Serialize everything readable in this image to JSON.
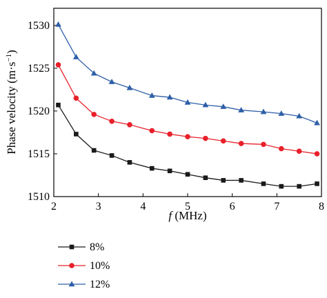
{
  "chart_data": {
    "type": "line",
    "xlabel_italic": "f",
    "xlabel_unit": " (MHz)",
    "ylabel_main": "Phase velocity (m·s",
    "ylabel_sup": "−1",
    "ylabel_close": ")",
    "xlim": [
      2,
      8
    ],
    "ylim": [
      1510,
      1532
    ],
    "x_ticks": [
      2,
      3,
      4,
      5,
      6,
      7,
      8
    ],
    "y_ticks": [
      1510,
      1515,
      1520,
      1525,
      1530
    ],
    "x": [
      2.1,
      2.5,
      2.9,
      3.3,
      3.7,
      4.2,
      4.6,
      5.0,
      5.4,
      5.8,
      6.2,
      6.7,
      7.1,
      7.5,
      7.9
    ],
    "series": [
      {
        "name": "8%",
        "color": "#1a1a1a",
        "marker": "square",
        "values": [
          1520.7,
          1517.3,
          1515.4,
          1514.8,
          1514.0,
          1513.3,
          1513.0,
          1512.6,
          1512.2,
          1511.9,
          1511.9,
          1511.5,
          1511.2,
          1511.2,
          1511.5
        ]
      },
      {
        "name": "10%",
        "color": "#e8202a",
        "marker": "circle",
        "values": [
          1525.4,
          1521.5,
          1519.6,
          1518.8,
          1518.4,
          1517.7,
          1517.3,
          1517.0,
          1516.8,
          1516.5,
          1516.2,
          1516.1,
          1515.6,
          1515.3,
          1515.0
        ]
      },
      {
        "name": "12%",
        "color": "#2e5fa8",
        "marker": "triangle",
        "values": [
          1530.1,
          1526.3,
          1524.4,
          1523.4,
          1522.7,
          1521.8,
          1521.6,
          1521.0,
          1520.7,
          1520.5,
          1520.1,
          1519.9,
          1519.7,
          1519.4,
          1518.6
        ]
      }
    ],
    "legend_position": "below"
  }
}
